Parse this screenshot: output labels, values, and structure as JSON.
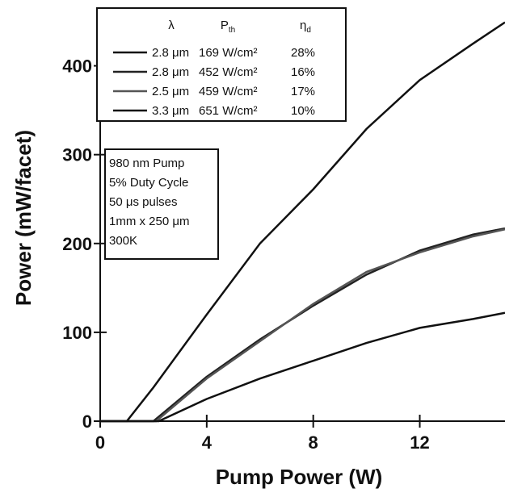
{
  "chart_data": {
    "type": "line",
    "xlabel": "Pump Power (W)",
    "ylabel": "Power (mW/facet)",
    "xlim": [
      0,
      15.2
    ],
    "ylim": [
      0,
      465
    ],
    "xticks": [
      0,
      4,
      8,
      12
    ],
    "yticks": [
      0,
      100,
      200,
      300,
      400
    ],
    "legend_headers": [
      {
        "base": "λ"
      },
      {
        "base": "P",
        "sub": "th"
      },
      {
        "base": "η",
        "sub": "d"
      }
    ],
    "series": [
      {
        "name": "2.8 μm",
        "threshold": "169 W/cm²",
        "efficiency": "28%",
        "color": "#111",
        "x": [
          0,
          1,
          2,
          4,
          6,
          8,
          10,
          12,
          14,
          15.2
        ],
        "values": [
          0,
          0,
          38,
          120,
          200,
          261,
          329,
          384,
          425,
          449
        ]
      },
      {
        "name": "2.8 μm",
        "threshold": "452 W/cm²",
        "efficiency": "16%",
        "color": "#222",
        "x": [
          0,
          2,
          4,
          6,
          8,
          10,
          12,
          14,
          15.2
        ],
        "values": [
          0,
          0,
          50,
          92,
          130,
          165,
          192,
          210,
          217
        ]
      },
      {
        "name": "2.5 μm",
        "threshold": "459 W/cm²",
        "efficiency": "17%",
        "color": "#555",
        "x": [
          0,
          2.1,
          4,
          6,
          8,
          10,
          12,
          14,
          15.2
        ],
        "values": [
          0,
          0,
          48,
          90,
          132,
          168,
          190,
          208,
          216
        ]
      },
      {
        "name": "3.3 μm",
        "threshold": "651 W/cm²",
        "efficiency": "10%",
        "color": "#111",
        "x": [
          0,
          2.2,
          4,
          6,
          8,
          10,
          12,
          14,
          15.2
        ],
        "values": [
          0,
          0,
          25,
          48,
          68,
          88,
          105,
          115,
          122
        ]
      }
    ],
    "annotation": [
      "980 nm Pump",
      "5% Duty Cycle",
      "50 μs pulses",
      "1mm x 250 μm",
      "300K"
    ]
  }
}
